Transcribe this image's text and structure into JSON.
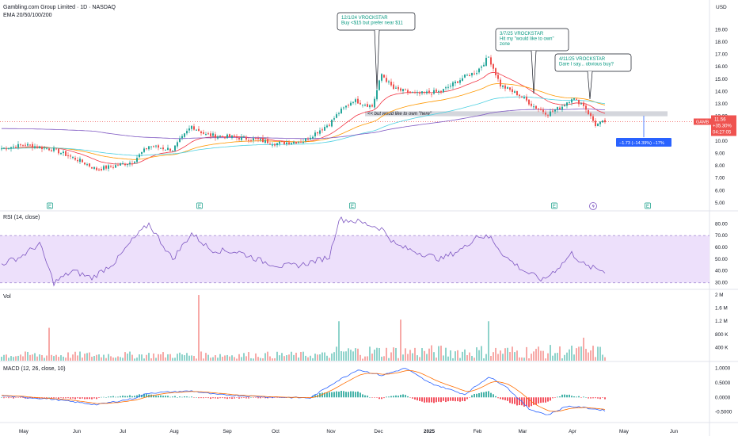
{
  "header": {
    "title": "Gambling.com Group Limited · 1D · NASDAQ",
    "ema_label": "EMA 20/50/100/200",
    "currency": "USD"
  },
  "colors": {
    "up": "#26a69a",
    "down": "#ef5350",
    "rsi_line": "#7e57c2",
    "rsi_band": "#ede0fb",
    "ema20": "#f23645",
    "ema50": "#ff9800",
    "ema100": "#4dd0e1",
    "ema200": "#7e57c2",
    "annotation_text": "#089981",
    "macd_line": "#2962ff",
    "signal_line": "#ff6d00",
    "zone": "#c5c8d0",
    "price_tag": "#ef5350",
    "measure": "#2962ff"
  },
  "price_tag": {
    "ticker": "GAMB",
    "price": "11.56",
    "change": "+35.30%",
    "countdown": "04:27:05"
  },
  "annotations": [
    {
      "lines": [
        "12/1/24 VROCKSTAR",
        "Buy <$15 but prefer near $11"
      ]
    },
    {
      "lines": [
        "3/7/25 VROCKSTAR",
        "Hit my \"would like to own\"",
        "zone"
      ]
    },
    {
      "lines": [
        "4/11/25 VROCKSTAR",
        "Dare I say... obvious buy?"
      ]
    }
  ],
  "zone_label": "<< but woud like to own \"here\"",
  "measure_label": "−1.73 (−14.39%) −17%",
  "earnings_icon": "E",
  "dividend_icon": "lightning-icon",
  "panes": {
    "rsi": {
      "label": "RSI (14, close)"
    },
    "vol": {
      "label": "Vol"
    },
    "macd": {
      "label": "MACD (12, 26, close, 10)"
    }
  },
  "chart_data": [
    {
      "type": "candlestick",
      "title": "Gambling.com Group Limited · 1D · NASDAQ",
      "y_axis_ticks": [
        "19.00",
        "18.00",
        "17.00",
        "16.00",
        "15.00",
        "14.00",
        "13.00",
        "12.00",
        "11.00",
        "10.00",
        "9.00",
        "8.00",
        "7.00",
        "6.00",
        "5.00"
      ],
      "x_axis_labels": [
        "May",
        "Jun",
        "Jul",
        "Aug",
        "Sep",
        "Oct",
        "Nov",
        "Dec",
        "2025",
        "Feb",
        "Mar",
        "Apr",
        "May",
        "Jun"
      ],
      "ylim": [
        4.8,
        19.6
      ],
      "close_path_keypoints": [
        [
          0,
          9.4
        ],
        [
          10,
          9.7
        ],
        [
          22,
          9.3
        ],
        [
          33,
          8.4
        ],
        [
          40,
          7.7
        ],
        [
          55,
          8.3
        ],
        [
          62,
          9.6
        ],
        [
          72,
          9.3
        ],
        [
          80,
          11.2
        ],
        [
          86,
          10.5
        ],
        [
          98,
          10.3
        ],
        [
          108,
          10.1
        ],
        [
          115,
          9.8
        ],
        [
          127,
          10.0
        ],
        [
          138,
          11.4
        ],
        [
          142,
          12.3
        ],
        [
          148,
          13.3
        ],
        [
          156,
          12.8
        ],
        [
          160,
          15.4
        ],
        [
          165,
          14.2
        ],
        [
          175,
          13.8
        ],
        [
          185,
          14.0
        ],
        [
          195,
          15.2
        ],
        [
          200,
          15.6
        ],
        [
          205,
          16.8
        ],
        [
          210,
          14.5
        ],
        [
          218,
          13.7
        ],
        [
          224,
          12.8
        ],
        [
          230,
          12.2
        ],
        [
          236,
          12.8
        ],
        [
          240,
          13.5
        ],
        [
          245,
          12.9
        ],
        [
          250,
          11.3
        ],
        [
          254,
          11.56
        ]
      ],
      "ema_series": [
        "EMA 20",
        "EMA 50",
        "EMA 100",
        "EMA 200"
      ],
      "horizontal_zone": [
        12.0,
        12.4
      ],
      "last_price": 11.56,
      "measure": {
        "from": 12.03,
        "to": 10.3,
        "label": "−1.73 (−14.39%) −17%"
      }
    },
    {
      "type": "line",
      "title": "RSI (14, close)",
      "y_axis_ticks": [
        "80.00",
        "70.00",
        "60.00",
        "50.00",
        "40.00",
        "30.00"
      ],
      "ylim": [
        25,
        87
      ],
      "band": [
        30,
        70
      ],
      "keypoints": [
        [
          0,
          46
        ],
        [
          8,
          52
        ],
        [
          16,
          63
        ],
        [
          22,
          30
        ],
        [
          30,
          40
        ],
        [
          38,
          34
        ],
        [
          48,
          48
        ],
        [
          55,
          66
        ],
        [
          62,
          80
        ],
        [
          72,
          50
        ],
        [
          80,
          72
        ],
        [
          88,
          58
        ],
        [
          100,
          56
        ],
        [
          110,
          48
        ],
        [
          118,
          44
        ],
        [
          126,
          45
        ],
        [
          138,
          52
        ],
        [
          142,
          84
        ],
        [
          150,
          82
        ],
        [
          160,
          76
        ],
        [
          166,
          62
        ],
        [
          175,
          56
        ],
        [
          185,
          50
        ],
        [
          195,
          60
        ],
        [
          200,
          70
        ],
        [
          206,
          68
        ],
        [
          212,
          52
        ],
        [
          220,
          40
        ],
        [
          228,
          32
        ],
        [
          236,
          46
        ],
        [
          240,
          55
        ],
        [
          246,
          44
        ],
        [
          250,
          42
        ],
        [
          254,
          40
        ]
      ]
    },
    {
      "type": "bar",
      "title": "Vol",
      "y_axis_ticks": [
        "2 M",
        "1.6 M",
        "1.2 M",
        "800 K",
        "400 K"
      ],
      "ylim": [
        0,
        2050000
      ],
      "spikes": [
        {
          "index": 20,
          "value": 1000000
        },
        {
          "index": 83,
          "value": 2000000
        },
        {
          "index": 142,
          "value": 1200000
        },
        {
          "index": 168,
          "value": 1250000
        },
        {
          "index": 205,
          "value": 1200000
        },
        {
          "index": 245,
          "value": 700000
        }
      ]
    },
    {
      "type": "histogram",
      "title": "MACD (12, 26, close, 10)",
      "y_axis_ticks": [
        "1.0000",
        "0.5000",
        "0.0000",
        "-0.5000"
      ],
      "ylim": [
        -0.78,
        1.12
      ],
      "macd_keypoints": [
        [
          0,
          0.05
        ],
        [
          20,
          -0.05
        ],
        [
          40,
          -0.25
        ],
        [
          55,
          -0.05
        ],
        [
          62,
          0.15
        ],
        [
          80,
          0.22
        ],
        [
          90,
          0.1
        ],
        [
          110,
          0.02
        ],
        [
          130,
          -0.02
        ],
        [
          140,
          0.5
        ],
        [
          150,
          0.95
        ],
        [
          160,
          0.75
        ],
        [
          170,
          1.0
        ],
        [
          180,
          0.5
        ],
        [
          195,
          0.1
        ],
        [
          205,
          0.7
        ],
        [
          212,
          0.4
        ],
        [
          222,
          -0.4
        ],
        [
          230,
          -0.6
        ],
        [
          238,
          -0.3
        ],
        [
          245,
          -0.35
        ],
        [
          254,
          -0.45
        ]
      ]
    }
  ]
}
